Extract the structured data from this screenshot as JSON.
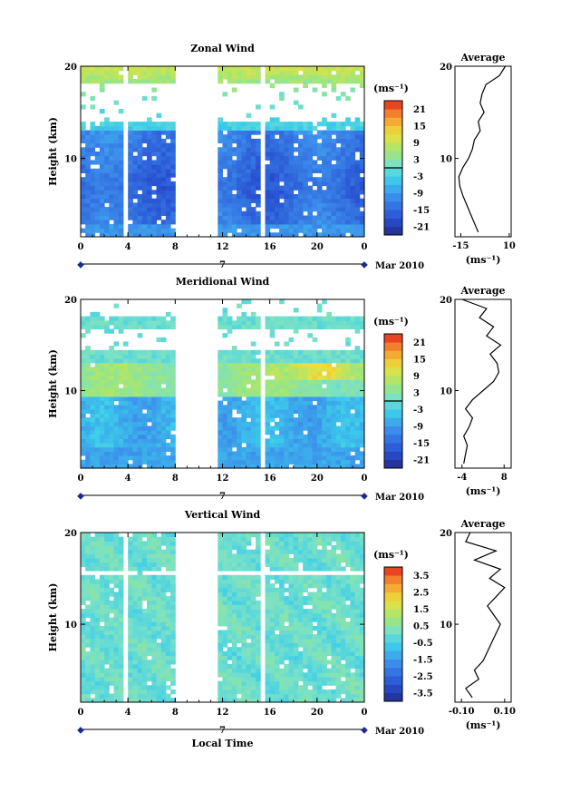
{
  "figure": {
    "date_label": "Mar 2010",
    "day_label": "7",
    "xlabel": "Local Time",
    "average_title": "Average"
  },
  "chart_data": [
    {
      "type": "heatmap",
      "title": "Zonal Wind",
      "ylabel": "Height (km)",
      "xlabel": "Local Time",
      "xlim": [
        0,
        24
      ],
      "x_ticks": [
        "0",
        "4",
        "8",
        "12",
        "16",
        "20",
        "0"
      ],
      "ylim": [
        1.5,
        20
      ],
      "y_ticks": [
        "10",
        "20"
      ],
      "colorbar": {
        "unit": "(ms⁻¹)",
        "min": -24,
        "max": 24,
        "ticks": [
          "-21",
          "-15",
          "-9",
          "-3",
          "3",
          "9",
          "15",
          "21"
        ]
      },
      "data_gaps_hours": [
        [
          8.1,
          11.6
        ],
        [
          3.6,
          3.9
        ],
        [
          7.5,
          7.7
        ],
        [
          11.9,
          12.1
        ],
        [
          12.3,
          12.5
        ],
        [
          15.2,
          15.6
        ]
      ],
      "profile": {
        "title": "Average",
        "xlabel": "(ms⁻¹)",
        "xlim": [
          -18,
          11
        ],
        "x_ticks": [
          "-15",
          "10"
        ],
        "heights": [
          2,
          3,
          4,
          5,
          6,
          7,
          8,
          9,
          10,
          11,
          12,
          13,
          14,
          15,
          16,
          17,
          18,
          19,
          20
        ],
        "values": [
          -6,
          -8,
          -10,
          -12,
          -14,
          -15.5,
          -16,
          -14,
          -11,
          -9,
          -8,
          -5,
          -6,
          -3,
          -5,
          -4,
          -2,
          5,
          8
        ]
      }
    },
    {
      "type": "heatmap",
      "title": "Meridional Wind",
      "ylabel": "Height (km)",
      "xlabel": "Local Time",
      "xlim": [
        0,
        24
      ],
      "x_ticks": [
        "0",
        "4",
        "8",
        "12",
        "16",
        "20",
        "0"
      ],
      "ylim": [
        1.5,
        20
      ],
      "y_ticks": [
        "10",
        "20"
      ],
      "colorbar": {
        "unit": "(ms⁻¹)",
        "min": -24,
        "max": 24,
        "ticks": [
          "-21",
          "-15",
          "-9",
          "-3",
          "3",
          "9",
          "15",
          "21"
        ]
      },
      "data_gaps_hours": [
        [
          8.1,
          11.6
        ],
        [
          11.9,
          12.1
        ],
        [
          12.3,
          12.5
        ],
        [
          15.2,
          15.6
        ]
      ],
      "profile": {
        "title": "Average",
        "xlabel": "(ms⁻¹)",
        "xlim": [
          -6,
          10
        ],
        "x_ticks": [
          "-4",
          "8"
        ],
        "heights": [
          2,
          3,
          4,
          5,
          6,
          7,
          8,
          9,
          10,
          11,
          12,
          13,
          14,
          15,
          16,
          17,
          18,
          19,
          20
        ],
        "values": [
          -3.5,
          -3,
          -2.5,
          -3.5,
          -2,
          -1,
          -3,
          -1,
          2,
          5,
          6.5,
          6,
          4,
          7,
          3,
          5,
          1,
          3,
          -4
        ]
      }
    },
    {
      "type": "heatmap",
      "title": "Vertical Wind",
      "ylabel": "Height (km)",
      "xlabel": "Local Time",
      "xlim": [
        0,
        24
      ],
      "x_ticks": [
        "0",
        "4",
        "8",
        "12",
        "16",
        "20",
        "0"
      ],
      "ylim": [
        1.5,
        20
      ],
      "y_ticks": [
        "10",
        "20"
      ],
      "colorbar": {
        "unit": "(ms⁻¹)",
        "min": -4,
        "max": 4,
        "ticks": [
          "-3.5",
          "-2.5",
          "-1.5",
          "-0.5",
          "0.5",
          "1.5",
          "2.5",
          "3.5"
        ]
      },
      "data_gaps_hours": [
        [
          8.1,
          11.6
        ],
        [
          3.6,
          3.9
        ],
        [
          11.9,
          12.1
        ],
        [
          12.3,
          12.5
        ],
        [
          15.2,
          15.6
        ]
      ],
      "profile": {
        "title": "Average",
        "xlabel": "(ms⁻¹)",
        "xlim": [
          -0.13,
          0.13
        ],
        "x_ticks": [
          "-0.10",
          "0.10"
        ],
        "heights": [
          2,
          3,
          4,
          5,
          6,
          7,
          8,
          9,
          10,
          11,
          12,
          13,
          14,
          15,
          16,
          17,
          18,
          19,
          20
        ],
        "values": [
          -0.05,
          -0.08,
          -0.02,
          -0.04,
          0.0,
          0.02,
          0.04,
          0.06,
          0.08,
          0.05,
          0.02,
          0.06,
          0.1,
          0.03,
          0.08,
          -0.04,
          0.06,
          -0.08,
          -0.06
        ]
      }
    }
  ]
}
